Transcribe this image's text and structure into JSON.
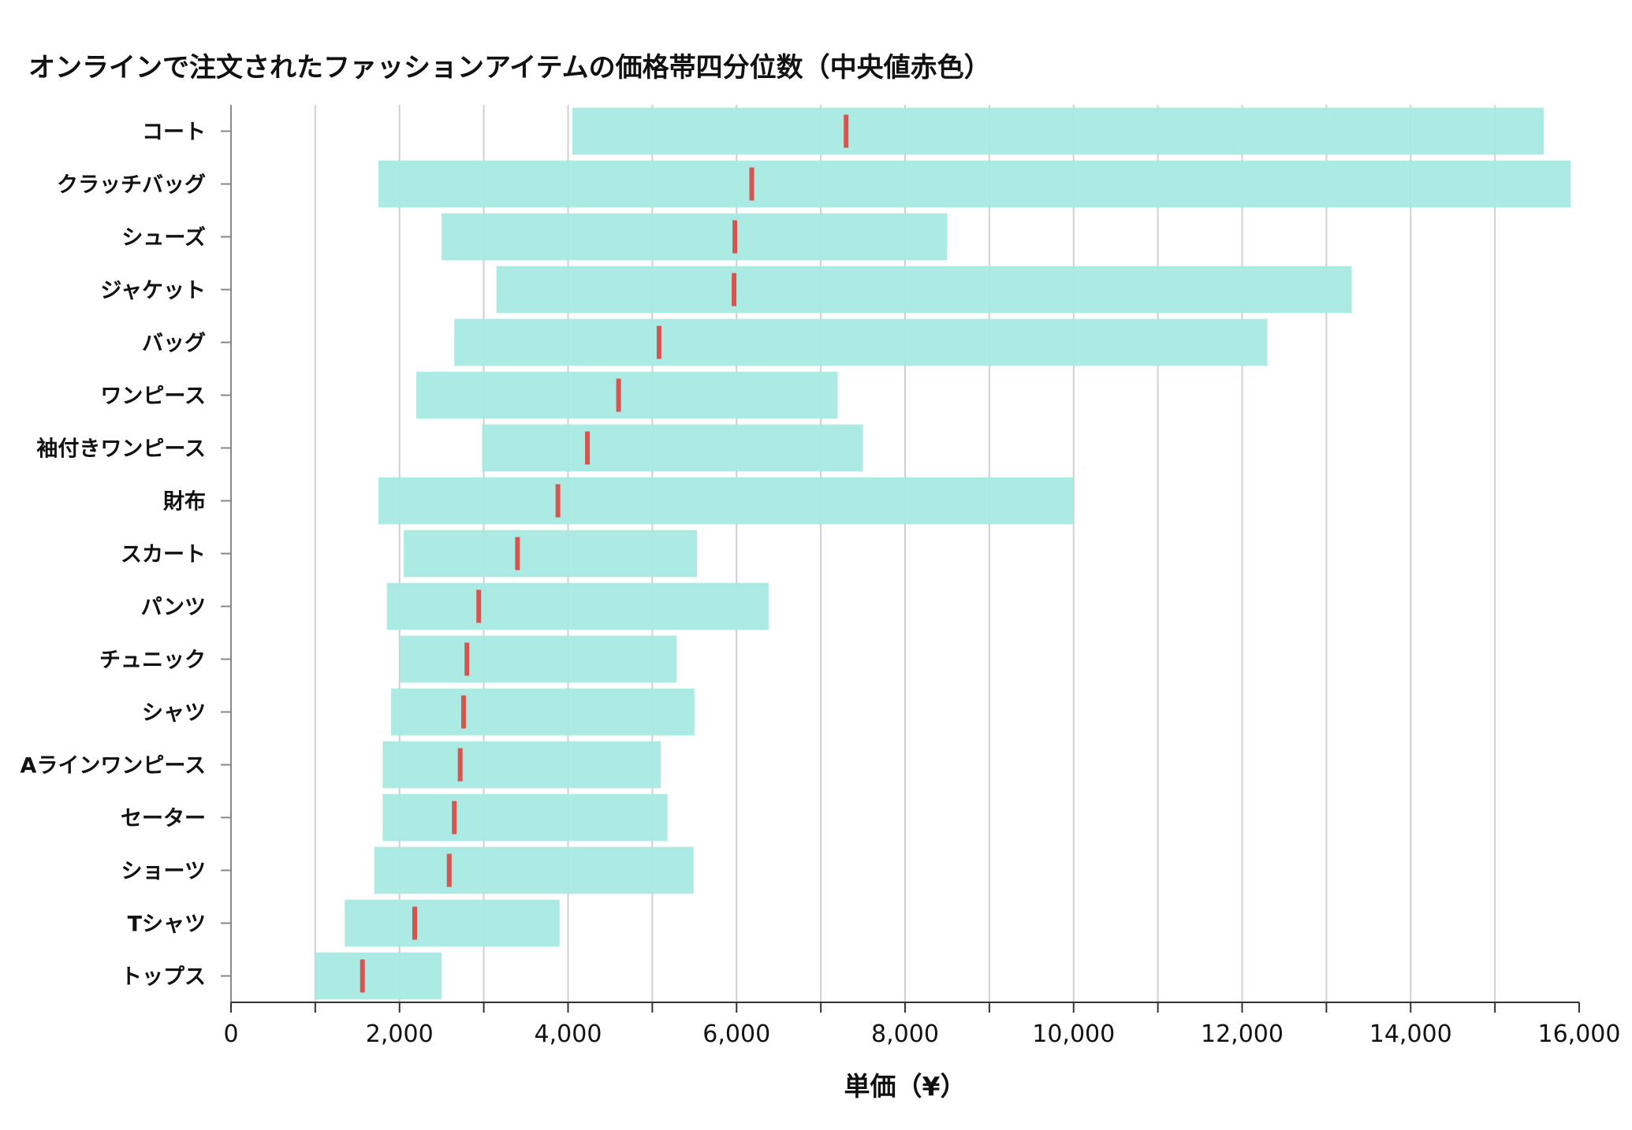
{
  "chart_data": {
    "type": "bar",
    "subtype": "horizontal-range-with-median",
    "title": "オンラインで注文されたファッションアイテムの価格帯四分位数（中央値赤色）",
    "xlabel": "単価（¥）",
    "ylabel": "",
    "xlim": [
      0,
      16000
    ],
    "xticks": [
      0,
      2000,
      4000,
      6000,
      8000,
      10000,
      12000,
      14000,
      16000
    ],
    "xtick_labels": [
      "0",
      "2,000",
      "4,000",
      "6,000",
      "8,000",
      "10,000",
      "12,000",
      "14,000",
      "16,000"
    ],
    "grid_step": 1000,
    "grid": true,
    "colors": {
      "box": "#a8e9e3",
      "median": "#d9534f",
      "grid": "#d0d0d0",
      "axis": "#888888"
    },
    "categories": [
      "コート",
      "クラッチバッグ",
      "シューズ",
      "ジャケット",
      "バッグ",
      "ワンピース",
      "袖付きワンピース",
      "財布",
      "スカート",
      "パンツ",
      "チュニック",
      "シャツ",
      "Aラインワンピース",
      "セーター",
      "ショーツ",
      "Tシャツ",
      "トップス"
    ],
    "q1": [
      4050,
      1750,
      2500,
      3150,
      2650,
      2200,
      2980,
      1750,
      2050,
      1850,
      2000,
      1900,
      1800,
      1800,
      1700,
      1350,
      1000
    ],
    "median": [
      7300,
      6180,
      5980,
      5970,
      5080,
      4600,
      4230,
      3880,
      3400,
      2940,
      2800,
      2760,
      2720,
      2650,
      2590,
      2180,
      1560
    ],
    "q3": [
      15580,
      15900,
      8500,
      13300,
      12300,
      7200,
      7500,
      10000,
      5530,
      6380,
      5290,
      5500,
      5100,
      5180,
      5490,
      3900,
      2500
    ]
  }
}
